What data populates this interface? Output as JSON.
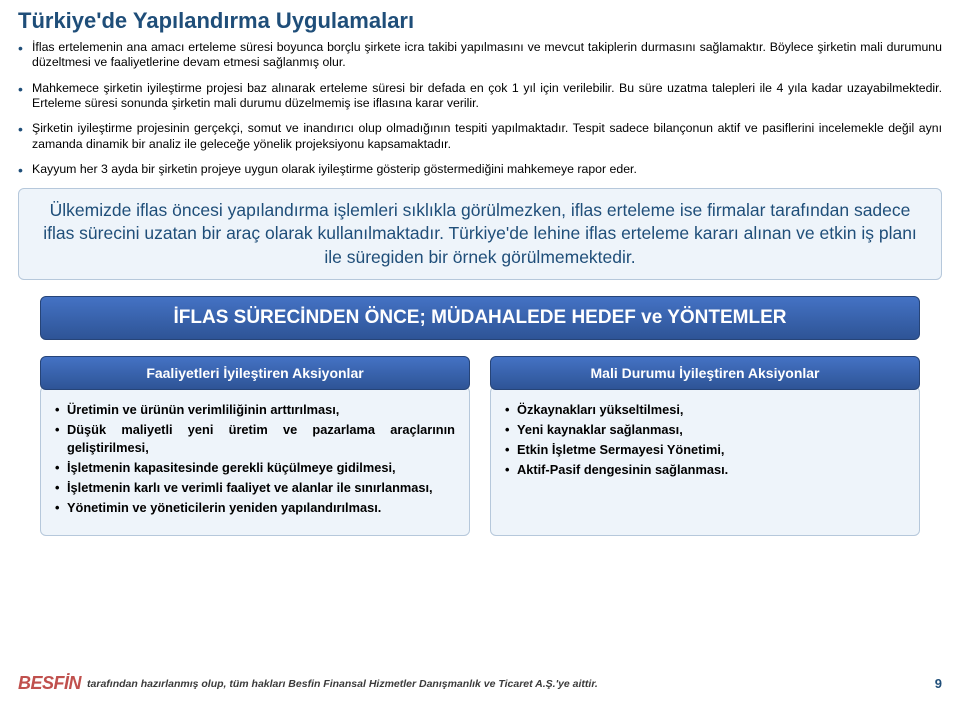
{
  "title": "Türkiye'de Yapılandırma Uygulamaları",
  "bullets": [
    "İflas ertelemenin ana amacı erteleme süresi boyunca borçlu şirkete icra takibi yapılmasını ve mevcut takiplerin durmasını sağlamaktır. Böylece şirketin mali durumunu düzeltmesi ve faaliyetlerine devam etmesi sağlanmış olur.",
    "Mahkemece şirketin iyileştirme projesi baz alınarak erteleme süresi bir defada en çok 1 yıl için verilebilir. Bu süre uzatma talepleri ile 4 yıla kadar uzayabilmektedir. Erteleme süresi sonunda şirketin mali durumu düzelmemiş ise iflasına karar verilir.",
    "Şirketin iyileştirme projesinin gerçekçi, somut ve inandırıcı olup olmadığının tespiti yapılmaktadır. Tespit sadece bilançonun aktif ve pasiflerini incelemekle değil aynı zamanda dinamik bir analiz ile geleceğe yönelik projeksiyonu kapsamaktadır.",
    "Kayyum her 3 ayda bir şirketin projeye uygun olarak iyileştirme gösterip göstermediğini mahkemeye rapor eder."
  ],
  "highlight": "Ülkemizde iflas öncesi yapılandırma işlemleri sıklıkla görülmezken, iflas erteleme ise firmalar tarafından sadece iflas sürecini uzatan bir araç  olarak kullanılmaktadır. Türkiye'de lehine iflas erteleme kararı alınan ve etkin iş planı ile süregiden  bir örnek görülmemektedir.",
  "section_bar": "İFLAS SÜRECİNDEN ÖNCE; MÜDAHALEDE HEDEF ve YÖNTEMLER",
  "left": {
    "header": "Faaliyetleri İyileştiren Aksiyonlar",
    "items": [
      "Üretimin ve ürünün verimliliğinin arttırılması,",
      "Düşük maliyetli yeni üretim ve pazarlama araçlarının geliştirilmesi,",
      "İşletmenin kapasitesinde gerekli küçülmeye gidilmesi,",
      "İşletmenin karlı ve verimli faaliyet ve alanlar ile sınırlanması,",
      "Yönetimin ve yöneticilerin yeniden yapılandırılması."
    ]
  },
  "right": {
    "header": "Mali Durumu İyileştiren Aksiyonlar",
    "items": [
      "Özkaynakları yükseltilmesi,",
      "Yeni kaynaklar sağlanması,",
      "Etkin İşletme Sermayesi Yönetimi,",
      "Aktif-Pasif dengesinin sağlanması."
    ]
  },
  "footer": {
    "logo": "BESFİN",
    "text": "tarafından hazırlanmış olup, tüm hakları Besfin Finansal Hizmetler Danışmanlık ve Ticaret A.Ş.'ye aittir.",
    "page": "9"
  },
  "colors": {
    "title": "#1f4e79",
    "box_bg": "#eef4fa",
    "box_border": "#b6c8db",
    "bar_bg": "#2e5496",
    "logo": "#c0504d"
  }
}
